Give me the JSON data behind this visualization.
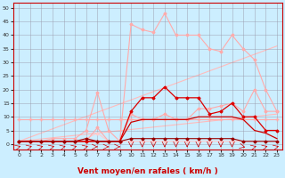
{
  "xlabel": "Vent moyen/en rafales ( km/h )",
  "bg_color": "#cceeff",
  "grid_color": "#9999aa",
  "xlim": [
    -0.5,
    23.5
  ],
  "ylim": [
    -2,
    52
  ],
  "yticks": [
    0,
    5,
    10,
    15,
    20,
    25,
    30,
    35,
    40,
    45,
    50
  ],
  "xticks": [
    0,
    1,
    2,
    3,
    4,
    5,
    6,
    7,
    8,
    9,
    10,
    11,
    12,
    13,
    14,
    15,
    16,
    17,
    18,
    19,
    20,
    21,
    22,
    23
  ],
  "line_flat_x": [
    0,
    1,
    2,
    3,
    4,
    5,
    6,
    7,
    8,
    9,
    10,
    11,
    12,
    13,
    14,
    15,
    16,
    17,
    18,
    19,
    20,
    21,
    22,
    23
  ],
  "line_flat_y": [
    9,
    9,
    9,
    9,
    9,
    9,
    9,
    9,
    9,
    9,
    9,
    9,
    9,
    9,
    9,
    9,
    9,
    9,
    9,
    9,
    9,
    9,
    9,
    9
  ],
  "line_flat_color": "#ffaaaa",
  "line_pink_high_x": [
    0,
    1,
    2,
    3,
    4,
    5,
    6,
    7,
    8,
    9,
    10,
    11,
    12,
    13,
    14,
    15,
    16,
    17,
    18,
    19,
    20,
    21,
    22,
    23
  ],
  "line_pink_high_y": [
    1,
    1,
    1,
    1,
    1,
    1,
    1,
    6,
    1,
    1,
    44,
    42,
    41,
    48,
    40,
    40,
    40,
    35,
    34,
    40,
    35,
    31,
    20,
    12
  ],
  "line_pink_high_color": "#ffaaaa",
  "line_pink_mid_x": [
    0,
    1,
    2,
    3,
    4,
    5,
    6,
    7,
    8,
    9,
    10,
    11,
    12,
    13,
    14,
    15,
    16,
    17,
    18,
    19,
    20,
    21,
    22,
    23
  ],
  "line_pink_mid_y": [
    1,
    1,
    1,
    2,
    2,
    2,
    5,
    19,
    5,
    1,
    11,
    9,
    9,
    11,
    9,
    9,
    13,
    13,
    14,
    15,
    12,
    20,
    12,
    12
  ],
  "line_pink_mid_color": "#ffaaaa",
  "line_pink_low_x": [
    0,
    1,
    2,
    3,
    4,
    5,
    6,
    7,
    8,
    9,
    10,
    11,
    12,
    13,
    14,
    15,
    16,
    17,
    18,
    19,
    20,
    21,
    22,
    23
  ],
  "line_pink_low_y": [
    1,
    1,
    1,
    1,
    1,
    1,
    2,
    4,
    1,
    1,
    1,
    1,
    1,
    1,
    1,
    1,
    1,
    1,
    1,
    1,
    1,
    1,
    1,
    1
  ],
  "line_pink_low_color": "#ffcccc",
  "trend1_x": [
    0,
    23
  ],
  "trend1_y": [
    1,
    11
  ],
  "trend1_color": "#ffbbbb",
  "trend2_x": [
    0,
    23
  ],
  "trend2_y": [
    1,
    36
  ],
  "trend2_color": "#ffbbbb",
  "line_red_main_x": [
    0,
    1,
    2,
    3,
    4,
    5,
    6,
    7,
    8,
    9,
    10,
    11,
    12,
    13,
    14,
    15,
    16,
    17,
    18,
    19,
    20,
    21,
    22,
    23
  ],
  "line_red_main_y": [
    1,
    1,
    1,
    1,
    1,
    1,
    1,
    1,
    1,
    1,
    12,
    17,
    17,
    21,
    17,
    17,
    17,
    11,
    12,
    15,
    10,
    10,
    5,
    5
  ],
  "line_red_main_color": "#dd0000",
  "line_red_low_x": [
    0,
    1,
    2,
    3,
    4,
    5,
    6,
    7,
    8,
    9,
    10,
    11,
    12,
    13,
    14,
    15,
    16,
    17,
    18,
    19,
    20,
    21,
    22,
    23
  ],
  "line_red_low_y": [
    1,
    1,
    1,
    1,
    1,
    1,
    2,
    1,
    1,
    1,
    2,
    2,
    2,
    2,
    2,
    2,
    2,
    2,
    2,
    2,
    1,
    1,
    1,
    1
  ],
  "line_red_low_color": "#990000",
  "line_red_smooth_x": [
    0,
    1,
    2,
    3,
    4,
    5,
    6,
    7,
    8,
    9,
    10,
    11,
    12,
    13,
    14,
    15,
    16,
    17,
    18,
    19,
    20,
    21,
    22,
    23
  ],
  "line_red_smooth_y": [
    1,
    1,
    1,
    1,
    1,
    1,
    1,
    1,
    1,
    1,
    8,
    9,
    9,
    9,
    9,
    9,
    10,
    10,
    10,
    10,
    9,
    5,
    4,
    2
  ],
  "line_red_smooth_color": "#cc0000",
  "wind_dirs": [
    45,
    45,
    45,
    45,
    45,
    45,
    45,
    90,
    90,
    90,
    180,
    180,
    180,
    180,
    180,
    180,
    180,
    180,
    180,
    180,
    135,
    45,
    45,
    45
  ],
  "wind_arrow_color": "#cc0000",
  "xlabel_color": "#cc0000",
  "xlabel_fontsize": 6.5
}
